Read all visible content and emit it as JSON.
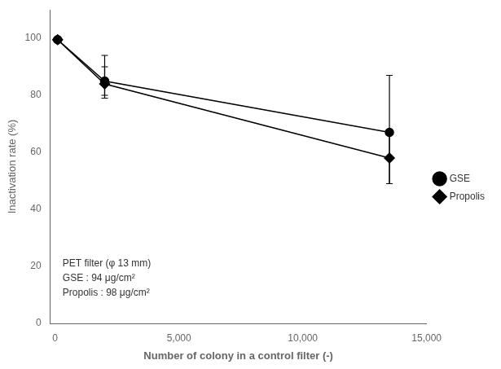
{
  "chart_data": {
    "type": "line",
    "xlabel": "Number of colony in a control filter (-)",
    "ylabel": "Inactivation rate (%)",
    "xlim": [
      -200,
      15000
    ],
    "ylim": [
      0,
      110
    ],
    "xticks": [
      0,
      5000,
      10000,
      15000
    ],
    "yticks": [
      0,
      20,
      40,
      60,
      80,
      100
    ],
    "x": [
      100,
      2000,
      13500
    ],
    "series": [
      {
        "name": "GSE",
        "color": "#000000",
        "marker": "circle",
        "line_style": "solid",
        "values": [
          99.5,
          85.0,
          67.0
        ],
        "error_low": [
          0.5,
          5.0,
          18.0
        ],
        "error_high": [
          0.5,
          9.0,
          20.0
        ]
      },
      {
        "name": "Propolis",
        "color": "#000000",
        "marker": "diamond",
        "line_style": "solid",
        "values": [
          99.5,
          84.0,
          58.0
        ],
        "error_low": [
          0.5,
          5.0,
          9.0
        ],
        "error_high": [
          0.5,
          6.0,
          9.0
        ]
      }
    ],
    "annotations": [
      {
        "lines": [
          "PET filter (φ 13 mm)",
          "GSE : 94 μg/cm²",
          "Propolis : 98 μg/cm²"
        ],
        "x": 300,
        "y": 9
      }
    ],
    "grid": false,
    "legend": "right"
  }
}
